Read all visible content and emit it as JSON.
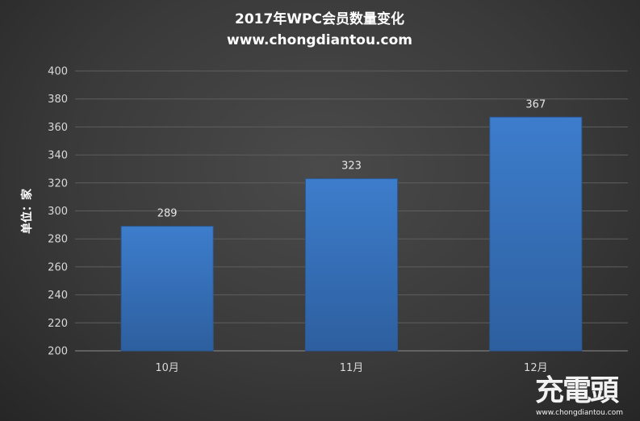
{
  "chart_data": {
    "type": "bar",
    "title": "2017年WPC会员数量变化",
    "subtitle": "www.chongdiantou.com",
    "ylabel": "单位：家",
    "xlabel": "",
    "categories": [
      "10月",
      "11月",
      "12月"
    ],
    "values": [
      289,
      323,
      367
    ],
    "ylim": [
      200,
      400
    ],
    "yticks": [
      200,
      220,
      240,
      260,
      280,
      300,
      320,
      340,
      360,
      380,
      400
    ],
    "grid": true,
    "legend": "none",
    "bar_color": "#3a78c6"
  },
  "watermark": {
    "logo_text": "充電頭",
    "url_text": "www.chongdiantou.com"
  }
}
